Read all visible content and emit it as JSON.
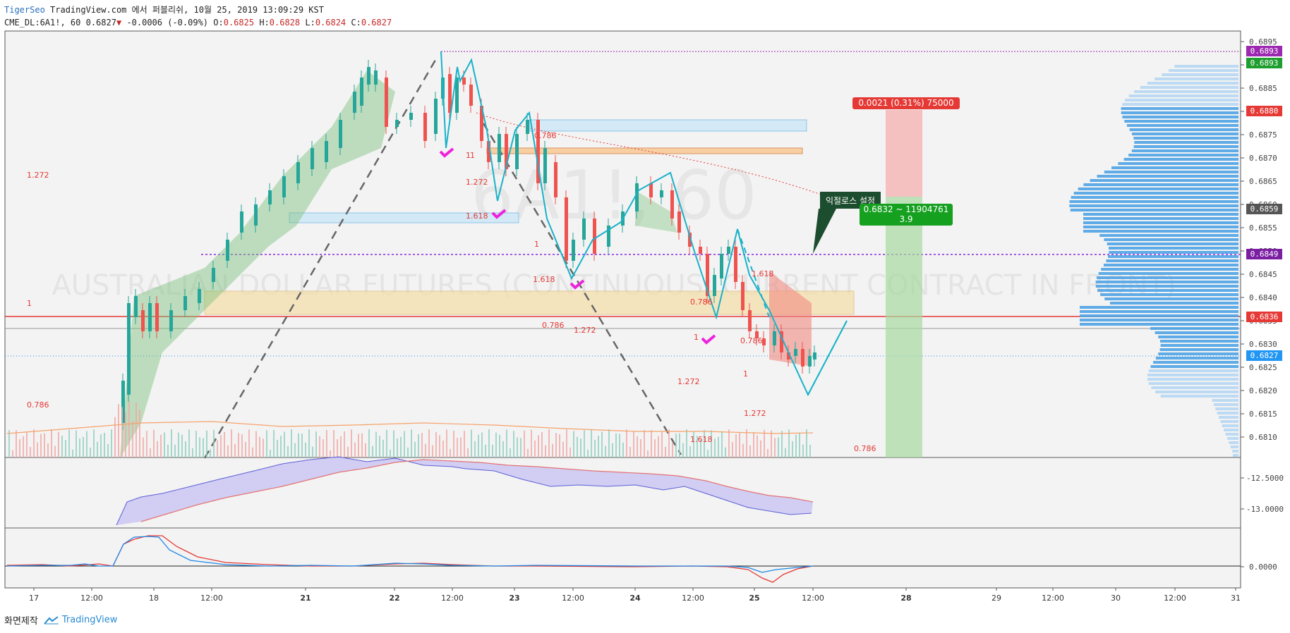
{
  "header": {
    "author": "TigerSeo",
    "published": "TradingView.com 에서 퍼블리쉬, 10월 25, 2019 13:09:29 KST",
    "symbol": "CME_DL:6A1!, 60",
    "last": "0.6827",
    "change": "-0.0006 (-0.09%)",
    "o_label": "O:",
    "o": "0.6825",
    "h_label": "H:",
    "h": "0.6828",
    "l_label": "L:",
    "l": "0.6824",
    "c_label": "C:",
    "c": "0.6827"
  },
  "watermark": {
    "symbol": "6A1!, 60",
    "description": "AUSTRALIAN DOLLAR FUTURES (CONTINUOUS: CURRENT CONTRACT IN FRONT)"
  },
  "price_axis": {
    "ticks": [
      "0.6895",
      "0.6890",
      "0.6885",
      "0.6880",
      "0.6875",
      "0.6870",
      "0.6865",
      "0.6860",
      "0.6855",
      "0.6850",
      "0.6845",
      "0.6840",
      "0.6835",
      "0.6830",
      "0.6825",
      "0.6820",
      "0.6815",
      "0.6810"
    ],
    "tags": [
      {
        "value": "0.6893",
        "color": "#9c27b0"
      },
      {
        "value": "0.6893",
        "color": "#1e9e2e"
      },
      {
        "value": "0.6880",
        "color": "#e53935"
      },
      {
        "value": "0.6859",
        "color": "#555555"
      },
      {
        "value": "0.6849",
        "color": "#7b1fa2"
      },
      {
        "value": "0.6836",
        "color": "#e53935"
      },
      {
        "value": "0.6827",
        "color": "#2196f3"
      }
    ]
  },
  "indicator_axis": {
    "ticks": [
      "-12.5000",
      "-13.0000"
    ]
  },
  "oscillator_axis": {
    "ticks": [
      "0.0000"
    ]
  },
  "time_axis": {
    "labels": [
      "17",
      "12:00",
      "18",
      "12:00",
      "21",
      "22",
      "12:00",
      "23",
      "12:00",
      "24",
      "12:00",
      "25",
      "12:00",
      "28",
      "29",
      "12:00",
      "30",
      "12:00",
      "31"
    ],
    "bold": [
      "21",
      "22",
      "23",
      "24",
      "25",
      "28"
    ]
  },
  "fib_labels": [
    "1.272",
    "0.786",
    "1",
    "1.618",
    "1",
    "1.272",
    "1.618",
    "0.786",
    "1",
    "1.272",
    "0.786",
    "1.618",
    "1",
    "0.786",
    "1.272",
    "1.618",
    "1",
    "1.272",
    "0.786",
    "0.786",
    "1"
  ],
  "position": {
    "target_label": "0.0021 (0.31%) 75000",
    "ratio_range": "0.6832 ~ 11904761",
    "ratio": "3.9"
  },
  "callout": {
    "text": "익절로스 설정"
  },
  "footer": {
    "credit": "화면제작",
    "brand": "TradingView"
  },
  "colors": {
    "up": "#26a69a",
    "down": "#ef5350",
    "volume_profile": "#4ea3e6",
    "fib": "#e53935",
    "zigzag": "#1ab2c9",
    "check": "#ee22dd"
  }
}
